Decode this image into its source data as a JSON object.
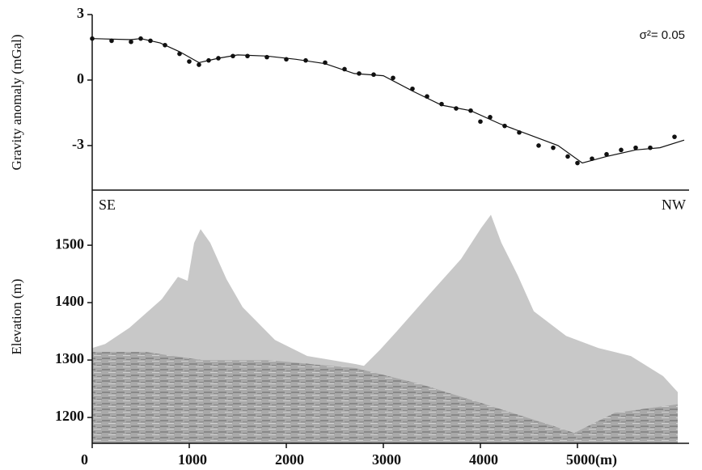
{
  "chart_data": [
    {
      "type": "line",
      "ylabel": "Gravity anomaly (mGal)",
      "annotation": "σ²= 0.05",
      "xlim": [
        0,
        6150
      ],
      "ylim": [
        -5.04,
        3
      ],
      "yticks": [
        -3,
        0,
        3
      ],
      "series": [
        {
          "style": "points",
          "color": "#111111",
          "x": [
            0,
            200,
            400,
            500,
            600,
            750,
            900,
            1000,
            1100,
            1200,
            1300,
            1450,
            1600,
            1800,
            2000,
            2200,
            2400,
            2600,
            2750,
            2900,
            3100,
            3300,
            3450,
            3600,
            3750,
            3900,
            4000,
            4100,
            4250,
            4400,
            4600,
            4750,
            4900,
            5000,
            5150,
            5300,
            5450,
            5600,
            5750,
            6000
          ],
          "values": [
            1.9,
            1.8,
            1.75,
            1.9,
            1.8,
            1.6,
            1.2,
            0.85,
            0.7,
            0.9,
            1.0,
            1.1,
            1.1,
            1.05,
            0.95,
            0.9,
            0.8,
            0.5,
            0.3,
            0.25,
            0.1,
            -0.4,
            -0.75,
            -1.1,
            -1.3,
            -1.4,
            -1.9,
            -1.7,
            -2.1,
            -2.4,
            -3.0,
            -3.1,
            -3.5,
            -3.8,
            -3.6,
            -3.4,
            -3.2,
            -3.1,
            -3.1,
            -2.6
          ]
        },
        {
          "style": "line",
          "color": "#111111",
          "x": [
            0,
            400,
            500,
            700,
            900,
            1100,
            1300,
            1500,
            1800,
            2100,
            2400,
            2700,
            3000,
            3300,
            3600,
            3900,
            4200,
            4500,
            4800,
            5050,
            5300,
            5600,
            5850,
            6100
          ],
          "values": [
            1.9,
            1.85,
            1.9,
            1.7,
            1.3,
            0.8,
            1.0,
            1.15,
            1.1,
            0.95,
            0.75,
            0.3,
            0.2,
            -0.5,
            -1.15,
            -1.4,
            -2.0,
            -2.5,
            -3.0,
            -3.8,
            -3.5,
            -3.2,
            -3.1,
            -2.75
          ]
        }
      ]
    },
    {
      "type": "area",
      "ylabel": "Elevation (m)",
      "annotations": [
        "SE",
        "NW"
      ],
      "xlim": [
        0,
        6150
      ],
      "ylim": [
        1155,
        1596
      ],
      "xticks": [
        0,
        1000,
        2000,
        3000,
        4000,
        {
          "value": 5000,
          "label": "5000(m)"
        }
      ],
      "yticks": [
        1200,
        1300,
        1400,
        1500
      ],
      "series": [
        {
          "style": "fill",
          "color": "#c8c8c8",
          "x": [
            0,
            133,
            383,
            717,
            883,
            983,
            1050,
            1117,
            1217,
            1383,
            1550,
            1883,
            2217,
            2717,
            2800,
            2967,
            3133,
            3467,
            3800,
            4008,
            4108,
            4217,
            4383,
            4550,
            4883,
            5217,
            5550,
            5883,
            6033
          ],
          "values": [
            1321,
            1328,
            1356,
            1406,
            1445,
            1438,
            1504,
            1528,
            1504,
            1441,
            1392,
            1335,
            1307,
            1293,
            1290,
            1318,
            1349,
            1413,
            1476,
            1530,
            1553,
            1504,
            1448,
            1385,
            1342,
            1321,
            1307,
            1272,
            1244
          ]
        },
        {
          "style": "texture",
          "color": "#8f8f8f",
          "x": [
            0,
            550,
            1133,
            1800,
            2717,
            3383,
            4050,
            4717,
            4967,
            5383,
            6033
          ],
          "values": [
            1314,
            1314,
            1300,
            1300,
            1286,
            1258,
            1223,
            1187,
            1173,
            1208,
            1223
          ]
        }
      ]
    }
  ]
}
